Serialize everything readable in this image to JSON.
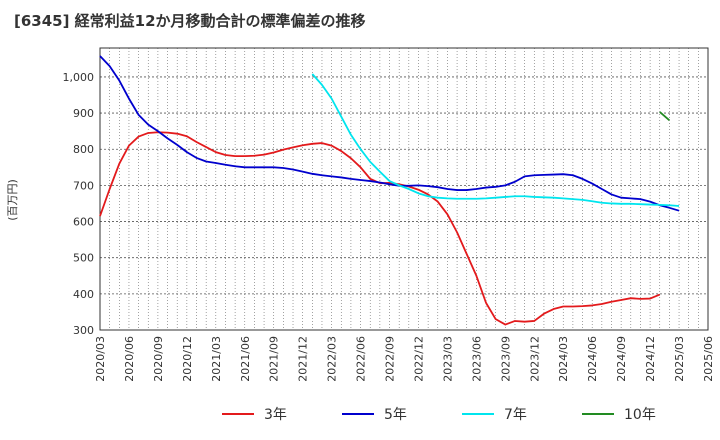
{
  "chart_data": {
    "type": "line",
    "title": "[6345]  経常利益12か月移動合計の標準偏差の推移",
    "ylabel": "(百万円)",
    "xlabel": "",
    "ylim": [
      300,
      1080
    ],
    "yticks": [
      300,
      400,
      500,
      600,
      700,
      800,
      900,
      1000
    ],
    "ytick_labels": [
      "300",
      "400",
      "500",
      "600",
      "700",
      "800",
      "900",
      "1,000"
    ],
    "xtick_labels": [
      "2020/03",
      "2020/06",
      "2020/09",
      "2020/12",
      "2021/03",
      "2021/06",
      "2021/09",
      "2021/12",
      "2022/03",
      "2022/06",
      "2022/09",
      "2022/12",
      "2023/03",
      "2023/06",
      "2023/09",
      "2023/12",
      "2024/03",
      "2024/06",
      "2024/09",
      "2024/12",
      "2025/03",
      "2025/06"
    ],
    "x_start": "2020/03",
    "grid": true,
    "legend_position": "bottom",
    "series": [
      {
        "name": "3年",
        "color": "#e31a1c",
        "values": [
          615,
          690,
          760,
          810,
          835,
          845,
          847,
          846,
          843,
          836,
          820,
          806,
          792,
          784,
          781,
          781,
          782,
          785,
          791,
          799,
          805,
          811,
          815,
          817,
          810,
          795,
          775,
          750,
          718,
          706,
          707,
          703,
          697,
          688,
          675,
          655,
          620,
          570,
          510,
          450,
          375,
          330,
          315,
          325,
          323,
          325,
          345,
          358,
          365,
          365,
          366,
          368,
          372,
          378,
          383,
          388,
          386,
          387,
          398
        ]
      },
      {
        "name": "5年",
        "color": "#0000cd",
        "values": [
          1058,
          1030,
          990,
          940,
          895,
          868,
          850,
          830,
          812,
          792,
          776,
          766,
          762,
          757,
          753,
          750,
          750,
          750,
          750,
          748,
          744,
          738,
          732,
          728,
          725,
          722,
          718,
          715,
          712,
          708,
          703,
          699,
          699,
          700,
          698,
          695,
          690,
          687,
          687,
          690,
          694,
          696,
          700,
          710,
          725,
          728,
          729,
          730,
          731,
          728,
          718,
          705,
          690,
          675,
          666,
          664,
          662,
          655,
          645,
          638,
          630
        ]
      },
      {
        "name": "7年",
        "color": "#00e5ee",
        "values": [
          null,
          null,
          null,
          null,
          null,
          null,
          null,
          null,
          null,
          null,
          null,
          null,
          null,
          null,
          null,
          null,
          null,
          null,
          null,
          null,
          null,
          null,
          1008,
          978,
          940,
          890,
          840,
          800,
          765,
          738,
          712,
          700,
          690,
          678,
          670,
          666,
          664,
          663,
          663,
          663,
          664,
          666,
          668,
          670,
          670,
          668,
          667,
          666,
          664,
          662,
          660,
          656,
          652,
          650,
          649,
          649,
          648,
          647,
          646,
          645,
          643
        ]
      },
      {
        "name": "10年",
        "color": "#228b22",
        "values": [
          null,
          null,
          null,
          null,
          null,
          null,
          null,
          null,
          null,
          null,
          null,
          null,
          null,
          null,
          null,
          null,
          null,
          null,
          null,
          null,
          null,
          null,
          null,
          null,
          null,
          null,
          null,
          null,
          null,
          null,
          null,
          null,
          null,
          null,
          null,
          null,
          null,
          null,
          null,
          null,
          null,
          null,
          null,
          null,
          null,
          null,
          null,
          null,
          null,
          null,
          null,
          null,
          null,
          null,
          null,
          null,
          null,
          null,
          903,
          880
        ]
      }
    ]
  }
}
